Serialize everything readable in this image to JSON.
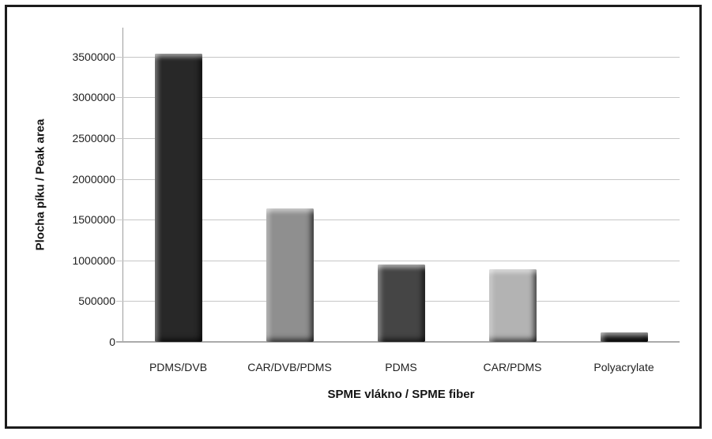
{
  "chart_data": {
    "type": "bar",
    "title": "",
    "categories": [
      "PDMS/DVB",
      "CAR/DVB/PDMS",
      "PDMS",
      "CAR/PDMS",
      "Polyacrylate"
    ],
    "values": [
      3540000,
      1640000,
      950000,
      890000,
      115000
    ],
    "bar_colors": [
      "#282828",
      "#8f8f8f",
      "#454545",
      "#b3b3b3",
      "#1f1f1f"
    ],
    "xlabel": "SPME vlákno / SPME fiber",
    "ylabel": "Plocha píku / Peak area",
    "yticks": [
      0,
      500000,
      1000000,
      1500000,
      2000000,
      2500000,
      3000000,
      3500000
    ],
    "ylim": [
      0,
      3860000
    ],
    "grid": true,
    "legend": false
  },
  "frame": {
    "border_color": "#1c1c1c",
    "background": "#ffffff",
    "gridline_color": "#c6c6c6",
    "axis_line_color": "#9d9d9d",
    "tick_text_color": "#1f1f1f"
  }
}
